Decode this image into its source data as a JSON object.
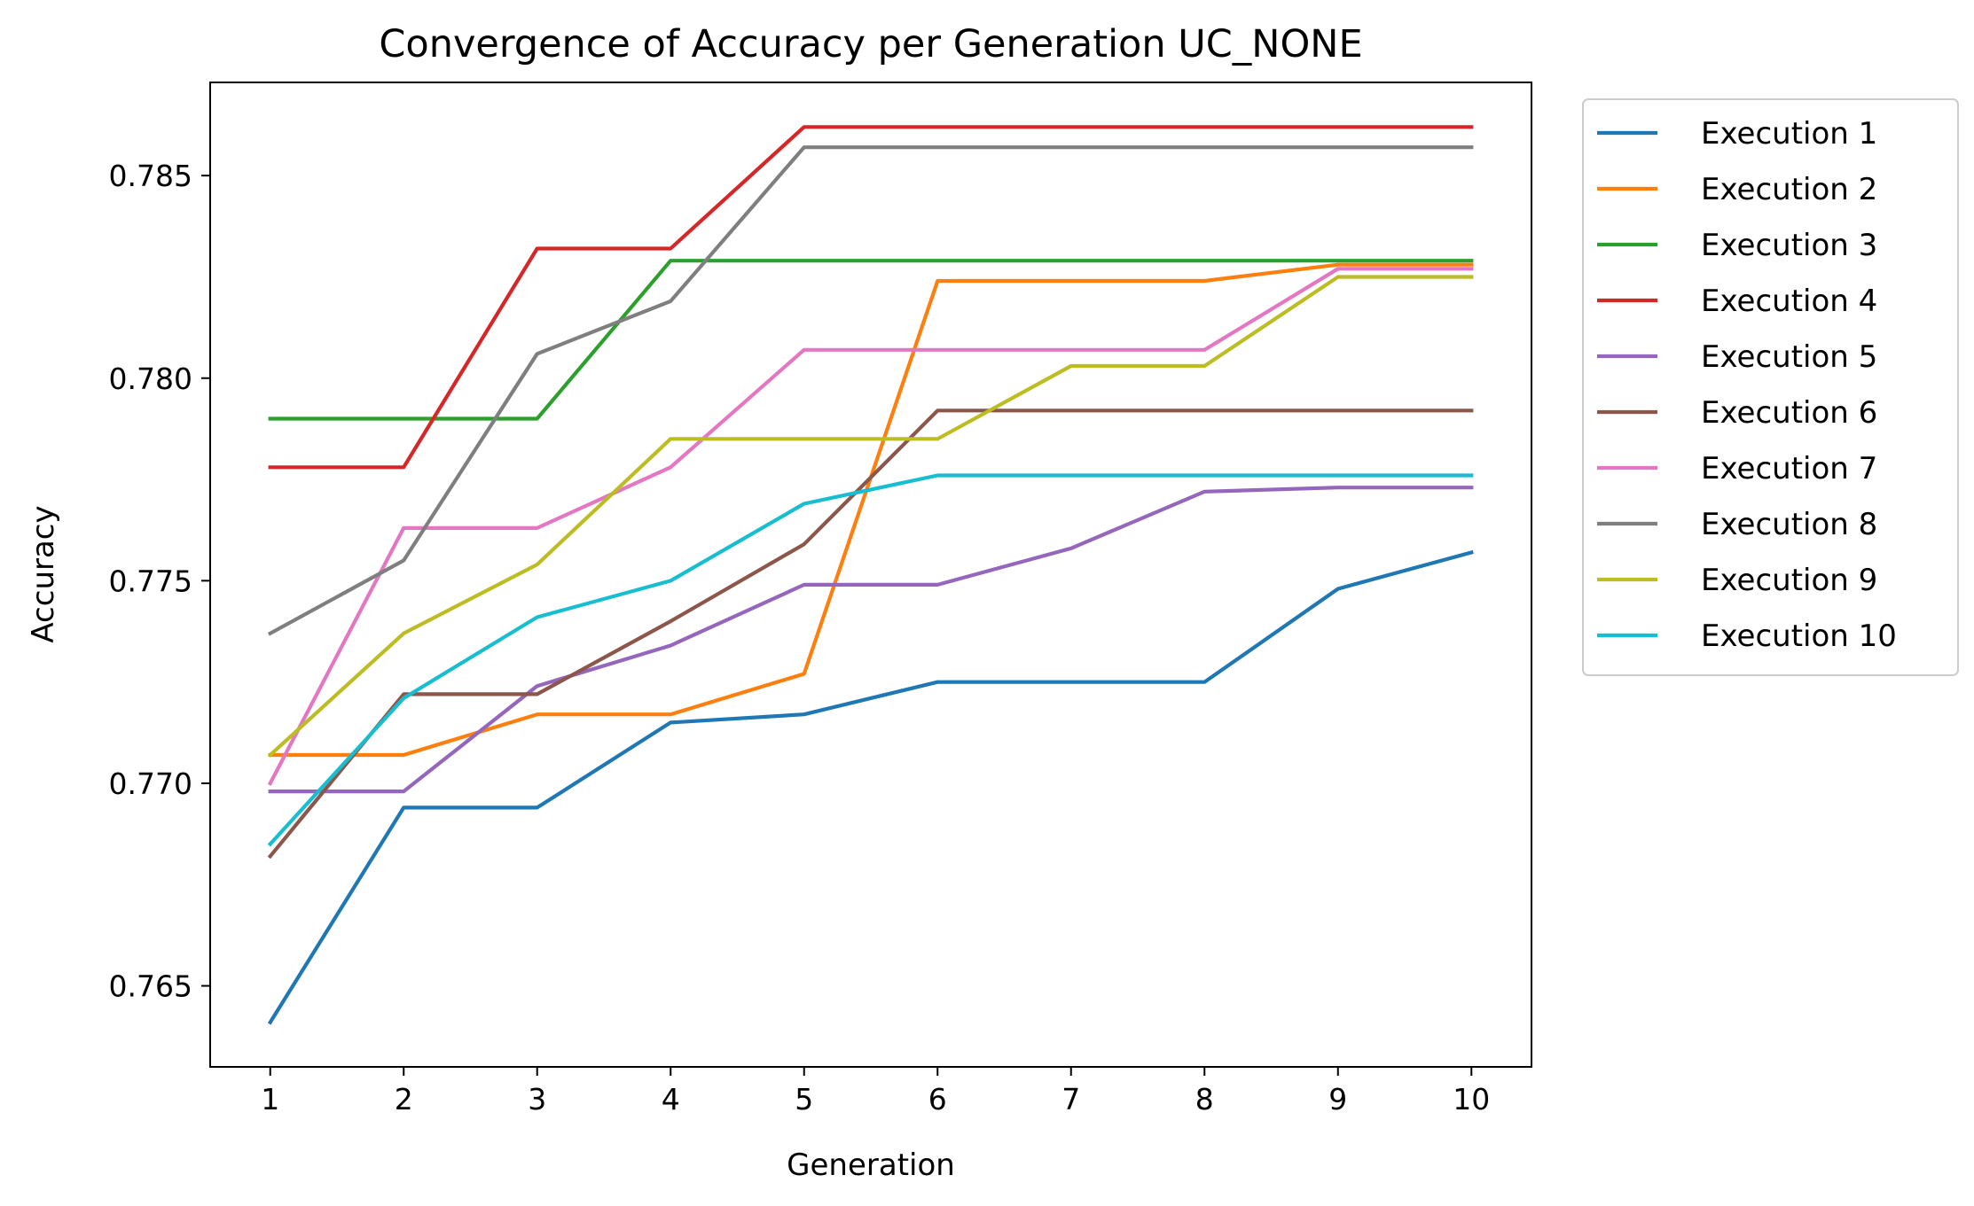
{
  "chart_data": {
    "type": "line",
    "title": "Convergence of Accuracy per Generation UC_NONE",
    "xlabel": "Generation",
    "ylabel": "Accuracy",
    "x": [
      1,
      2,
      3,
      4,
      5,
      6,
      7,
      8,
      9,
      10
    ],
    "x_ticks": [
      "1",
      "2",
      "3",
      "4",
      "5",
      "6",
      "7",
      "8",
      "9",
      "10"
    ],
    "y_ticks": [
      "0.765",
      "0.770",
      "0.775",
      "0.780",
      "0.785"
    ],
    "ylim": [
      0.763,
      0.7873
    ],
    "xlim": [
      0.55,
      10.45
    ],
    "grid": false,
    "legend_position": "outside-right-top",
    "series": [
      {
        "name": "Execution 1",
        "color": "#1f77b4",
        "values": [
          0.7641,
          0.7694,
          0.7694,
          0.7715,
          0.7717,
          0.7725,
          0.7725,
          0.7725,
          0.7748,
          0.7757
        ]
      },
      {
        "name": "Execution 2",
        "color": "#ff7f0e",
        "values": [
          0.7707,
          0.7707,
          0.7717,
          0.7717,
          0.7727,
          0.7824,
          0.7824,
          0.7824,
          0.7828,
          0.7828
        ]
      },
      {
        "name": "Execution 3",
        "color": "#2ca02c",
        "values": [
          0.779,
          0.779,
          0.779,
          0.7829,
          0.7829,
          0.7829,
          0.7829,
          0.7829,
          0.7829,
          0.7829
        ]
      },
      {
        "name": "Execution 4",
        "color": "#d62728",
        "values": [
          0.7778,
          0.7778,
          0.7832,
          0.7832,
          0.7862,
          0.7862,
          0.7862,
          0.7862,
          0.7862,
          0.7862
        ]
      },
      {
        "name": "Execution 5",
        "color": "#9467bd",
        "values": [
          0.7698,
          0.7698,
          0.7724,
          0.7734,
          0.7749,
          0.7749,
          0.7758,
          0.7772,
          0.7773,
          0.7773
        ]
      },
      {
        "name": "Execution 6",
        "color": "#8c564b",
        "values": [
          0.7682,
          0.7722,
          0.7722,
          0.774,
          0.7759,
          0.7792,
          0.7792,
          0.7792,
          0.7792,
          0.7792
        ]
      },
      {
        "name": "Execution 7",
        "color": "#e377c2",
        "values": [
          0.77,
          0.7763,
          0.7763,
          0.7778,
          0.7807,
          0.7807,
          0.7807,
          0.7807,
          0.7827,
          0.7827
        ]
      },
      {
        "name": "Execution 8",
        "color": "#7f7f7f",
        "values": [
          0.7737,
          0.7755,
          0.7806,
          0.7819,
          0.7857,
          0.7857,
          0.7857,
          0.7857,
          0.7857,
          0.7857
        ]
      },
      {
        "name": "Execution 9",
        "color": "#bcbd22",
        "values": [
          0.7707,
          0.7737,
          0.7754,
          0.7785,
          0.7785,
          0.7785,
          0.7803,
          0.7803,
          0.7825,
          0.7825
        ]
      },
      {
        "name": "Execution 10",
        "color": "#17becf",
        "values": [
          0.7685,
          0.7721,
          0.7741,
          0.775,
          0.7769,
          0.7776,
          0.7776,
          0.7776,
          0.7776,
          0.7776
        ]
      }
    ]
  }
}
